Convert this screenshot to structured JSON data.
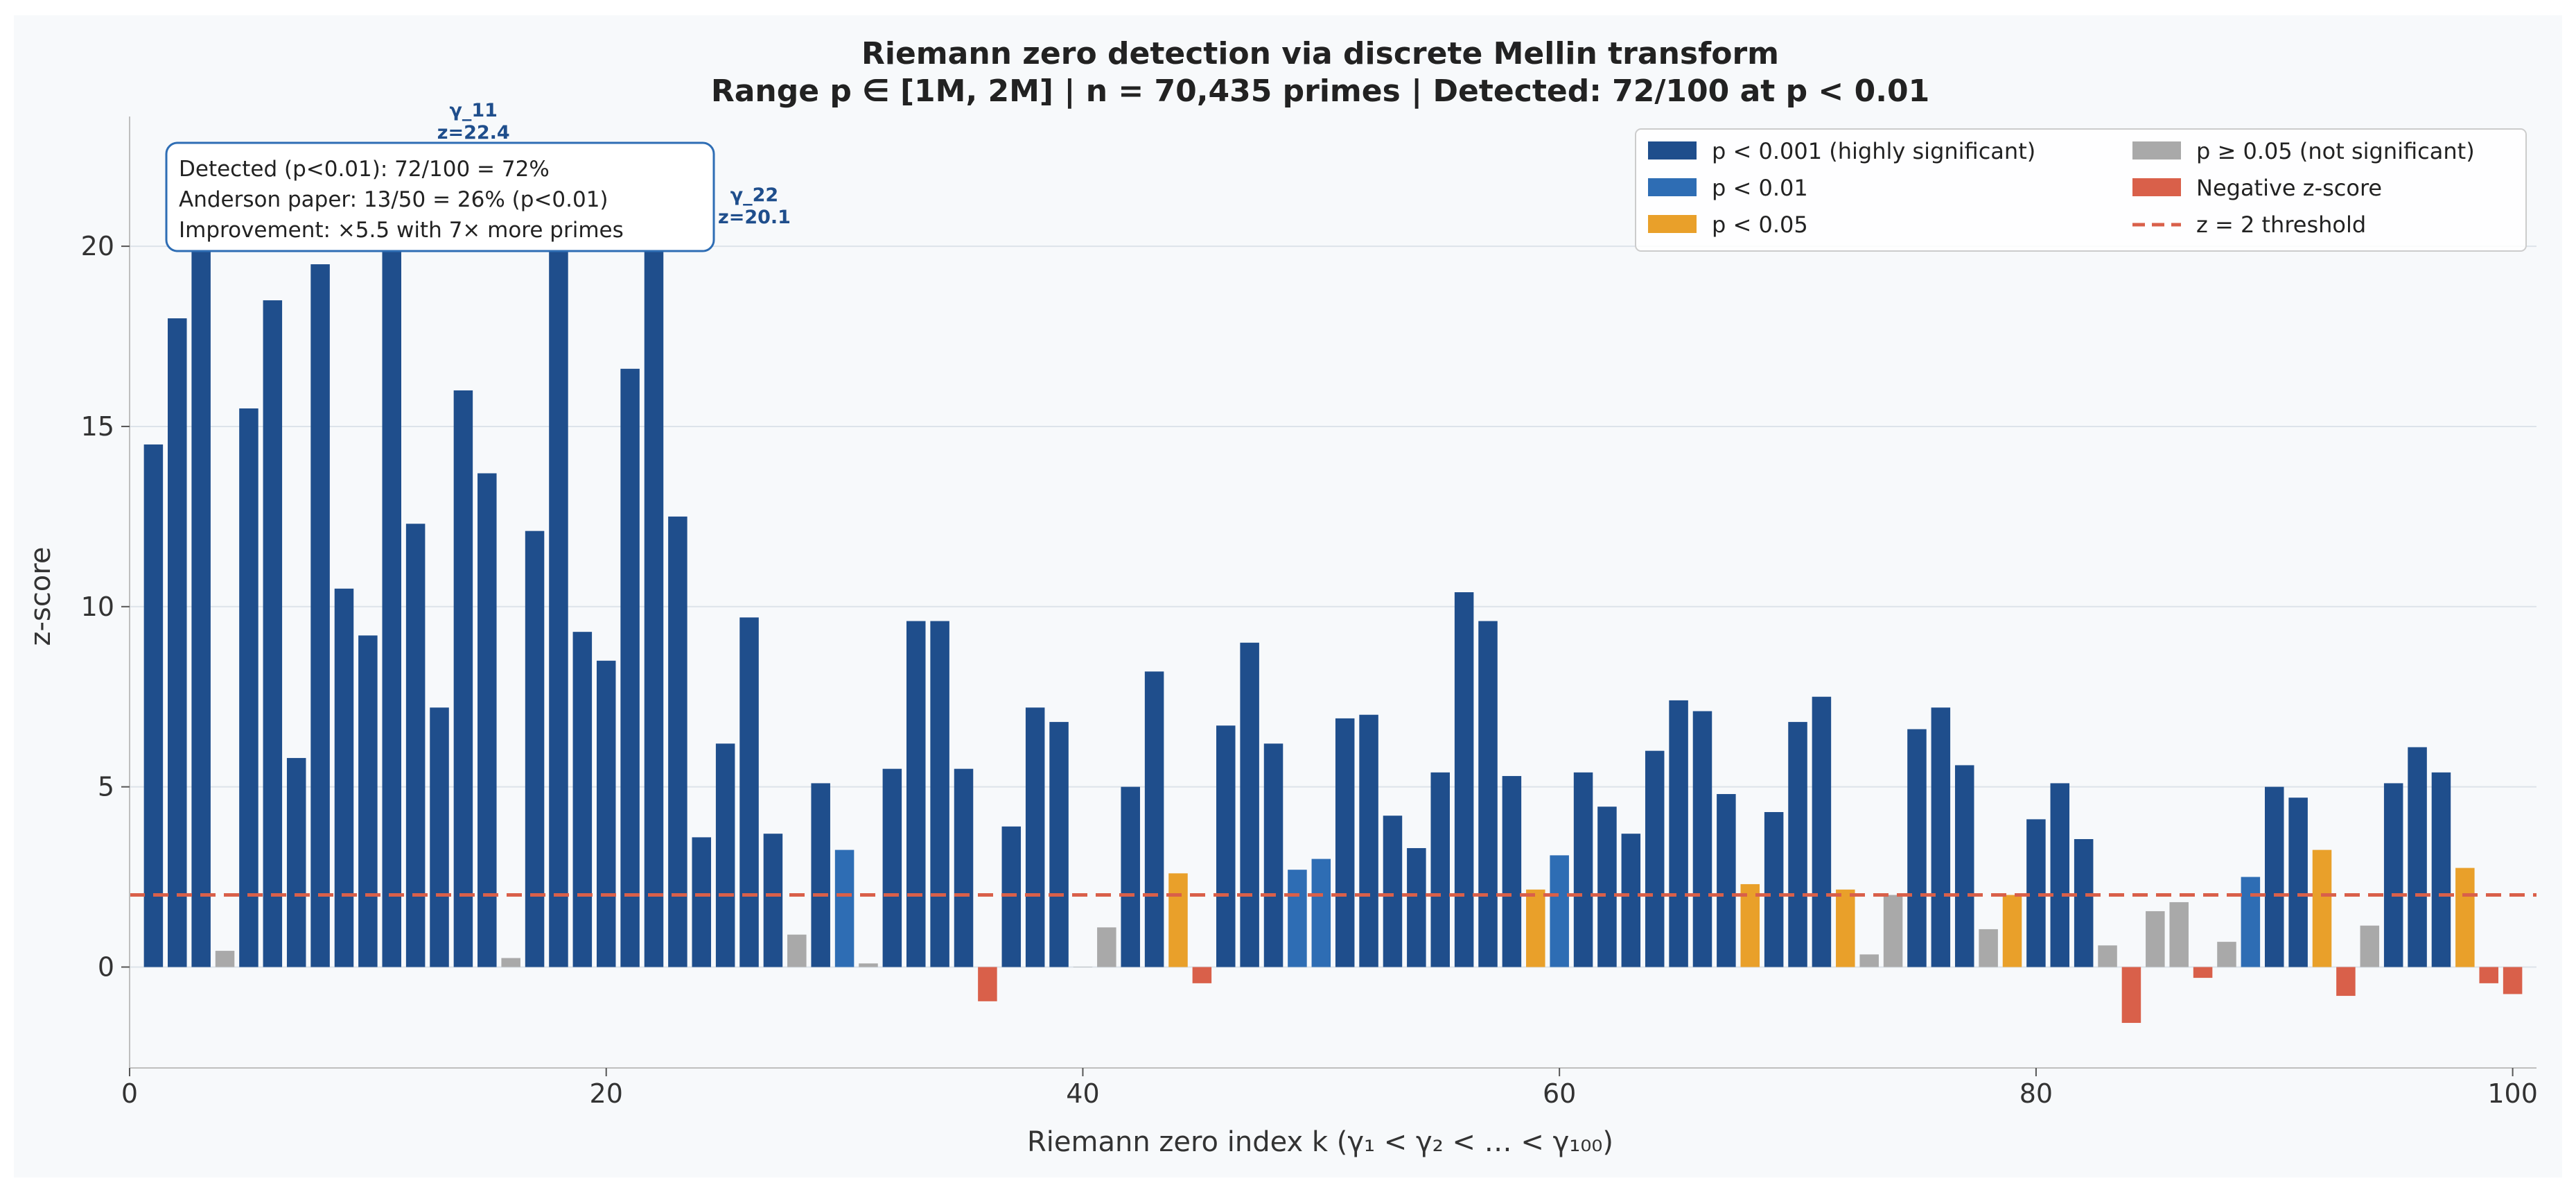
{
  "chart_data": {
    "type": "bar",
    "title_line1": "Riemann zero detection via discrete Mellin transform",
    "title_line2": "Range p ∈ [1M, 2M]  |  n = 70,435 primes  |  Detected: 72/100 at p < 0.01",
    "xlabel": "Riemann zero index k  (γ₁ < γ₂ < … < γ₁₀₀)",
    "ylabel": "z-score",
    "xlim": [
      0,
      101
    ],
    "ylim": [
      -2.8,
      23.6
    ],
    "xticks": [
      0,
      20,
      40,
      60,
      80,
      100
    ],
    "yticks": [
      0,
      5,
      10,
      15,
      20
    ],
    "grid": "horizontal",
    "threshold": 2,
    "colors": {
      "background": "#f7f9fb",
      "highly_significant": "#1f4e8c",
      "significant": "#2e6db4",
      "marginal": "#e9a02a",
      "not_significant": "#a9a9a9",
      "negative": "#d9604a",
      "threshold": "#d9604a",
      "annotation": "#1f4e8c"
    },
    "categories": [
      1,
      2,
      3,
      4,
      5,
      6,
      7,
      8,
      9,
      10,
      11,
      12,
      13,
      14,
      15,
      16,
      17,
      18,
      19,
      20,
      21,
      22,
      23,
      24,
      25,
      26,
      27,
      28,
      29,
      30,
      31,
      32,
      33,
      34,
      35,
      36,
      37,
      38,
      39,
      40,
      41,
      42,
      43,
      44,
      45,
      46,
      47,
      48,
      49,
      50,
      51,
      52,
      53,
      54,
      55,
      56,
      57,
      58,
      59,
      60,
      61,
      62,
      63,
      64,
      65,
      66,
      67,
      68,
      69,
      70,
      71,
      72,
      73,
      74,
      75,
      76,
      77,
      78,
      79,
      80,
      81,
      82,
      83,
      84,
      85,
      86,
      87,
      88,
      89,
      90,
      91,
      92,
      93,
      94,
      95,
      96,
      97,
      98,
      99,
      100
    ],
    "values": [
      14.5,
      18.0,
      20.2,
      0.45,
      15.5,
      18.5,
      5.8,
      19.5,
      10.5,
      9.2,
      22.4,
      12.3,
      7.2,
      16.0,
      13.7,
      0.25,
      12.1,
      20.3,
      9.3,
      8.5,
      16.6,
      20.1,
      12.5,
      3.6,
      6.2,
      9.7,
      3.7,
      0.9,
      5.1,
      3.25,
      0.1,
      5.5,
      9.6,
      9.6,
      5.5,
      -0.95,
      3.9,
      7.2,
      6.8,
      0.0,
      1.1,
      5.0,
      8.2,
      2.6,
      -0.45,
      6.7,
      9.0,
      6.2,
      2.7,
      3.0,
      6.9,
      7.0,
      4.2,
      3.3,
      5.4,
      10.4,
      9.6,
      5.3,
      2.15,
      3.1,
      5.4,
      4.45,
      3.7,
      6.0,
      7.4,
      7.1,
      4.8,
      2.3,
      4.3,
      6.8,
      7.5,
      2.15,
      0.35,
      2.0,
      6.6,
      7.2,
      5.6,
      1.05,
      2.0,
      4.1,
      5.1,
      3.55,
      0.6,
      -1.55,
      1.55,
      1.8,
      -0.3,
      0.7,
      2.5,
      5.0,
      4.7,
      3.25,
      -0.8,
      1.15,
      5.1,
      6.1,
      5.4,
      2.75,
      -0.45,
      -0.75
    ],
    "sig": [
      "hs",
      "hs",
      "hs",
      "ns",
      "hs",
      "hs",
      "hs",
      "hs",
      "hs",
      "hs",
      "hs",
      "hs",
      "hs",
      "hs",
      "hs",
      "ns",
      "hs",
      "hs",
      "hs",
      "hs",
      "hs",
      "hs",
      "hs",
      "hs",
      "hs",
      "hs",
      "hs",
      "ns",
      "hs",
      "s",
      "ns",
      "hs",
      "hs",
      "hs",
      "hs",
      "neg",
      "hs",
      "hs",
      "hs",
      "ns",
      "ns",
      "hs",
      "hs",
      "m",
      "neg",
      "hs",
      "hs",
      "hs",
      "s",
      "s",
      "hs",
      "hs",
      "hs",
      "hs",
      "hs",
      "hs",
      "hs",
      "hs",
      "m",
      "s",
      "hs",
      "hs",
      "hs",
      "hs",
      "hs",
      "hs",
      "hs",
      "m",
      "hs",
      "hs",
      "hs",
      "m",
      "ns",
      "ns",
      "hs",
      "hs",
      "hs",
      "ns",
      "m",
      "hs",
      "hs",
      "hs",
      "ns",
      "neg",
      "ns",
      "ns",
      "neg",
      "ns",
      "s",
      "hs",
      "hs",
      "m",
      "neg",
      "ns",
      "hs",
      "hs",
      "hs",
      "m",
      "neg",
      "neg"
    ],
    "point_labels": [
      {
        "index": 11,
        "name": "γ_11",
        "value": "z=22.4"
      },
      {
        "index": 22,
        "name": "γ_22",
        "value": "z=20.1"
      }
    ],
    "stats_box": [
      "Detected (p<0.01): 72/100 = 72%",
      "Anderson paper:  13/50 = 26%  (p<0.01)",
      "Improvement: ×5.5  with 7× more primes"
    ],
    "legend": {
      "placement": "top-right",
      "entries": [
        {
          "key": "hs",
          "label": "p < 0.001  (highly significant)",
          "kind": "patch"
        },
        {
          "key": "s",
          "label": "p < 0.01",
          "kind": "patch"
        },
        {
          "key": "m",
          "label": "p < 0.05",
          "kind": "patch"
        },
        {
          "key": "ns",
          "label": "p ≥ 0.05  (not significant)",
          "kind": "patch"
        },
        {
          "key": "neg",
          "label": "Negative z-score",
          "kind": "patch"
        },
        {
          "key": "thr",
          "label": "z = 2 threshold",
          "kind": "dashed-line"
        }
      ]
    }
  }
}
